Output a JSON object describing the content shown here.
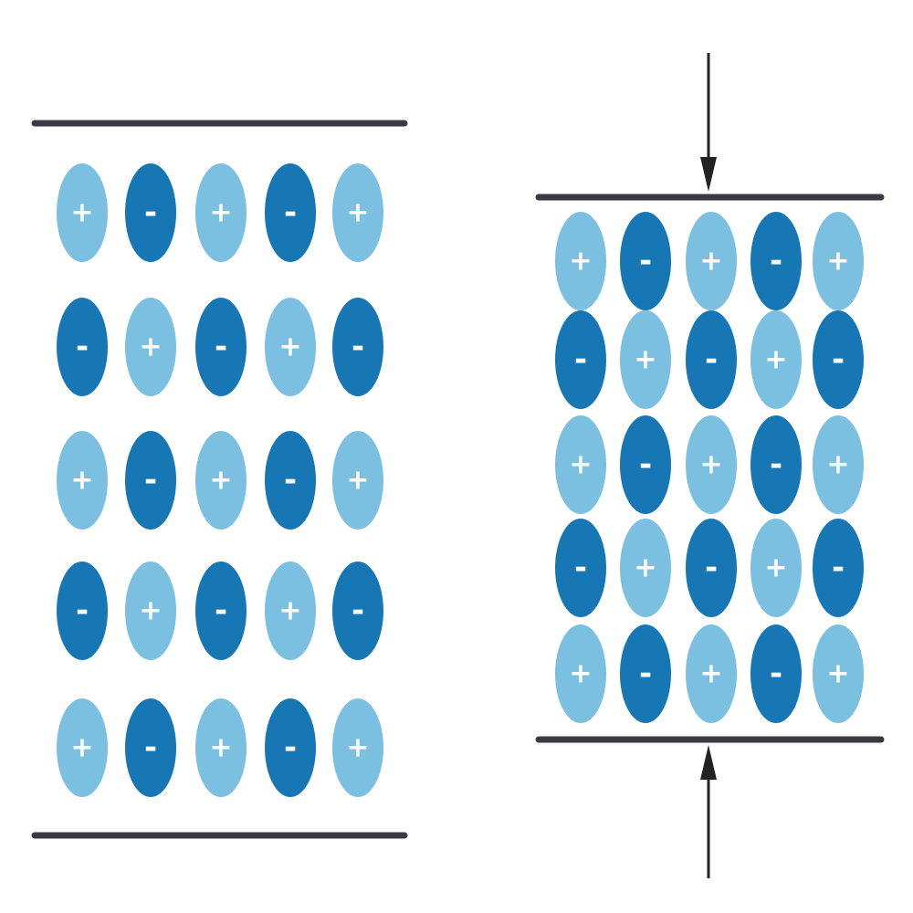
{
  "colors": {
    "background": "#ffffff",
    "positive_ion": "#7bbfe1",
    "negative_ion": "#1677b4",
    "plate": "#3a3a42",
    "arrow": "#222222",
    "sign": "#ffffff"
  },
  "ion_symbols": {
    "positive": "+",
    "negative": "-"
  },
  "panels": [
    {
      "name": "relaxed-lattice",
      "grid": [
        [
          "+",
          "-",
          "+",
          "-",
          "+"
        ],
        [
          "-",
          "+",
          "-",
          "+",
          "-"
        ],
        [
          "+",
          "-",
          "+",
          "-",
          "+"
        ],
        [
          "-",
          "+",
          "-",
          "+",
          "-"
        ],
        [
          "+",
          "-",
          "+",
          "-",
          "+"
        ]
      ],
      "compressed": false
    },
    {
      "name": "compressed-lattice",
      "grid": [
        [
          "+",
          "-",
          "+",
          "-",
          "+"
        ],
        [
          "-",
          "+",
          "-",
          "+",
          "-"
        ],
        [
          "+",
          "-",
          "+",
          "-",
          "+"
        ],
        [
          "-",
          "+",
          "-",
          "+",
          "-"
        ],
        [
          "+",
          "-",
          "+",
          "-",
          "+"
        ]
      ],
      "compressed": true
    }
  ],
  "icons": {
    "force_arrow": "force-arrow-icon"
  }
}
